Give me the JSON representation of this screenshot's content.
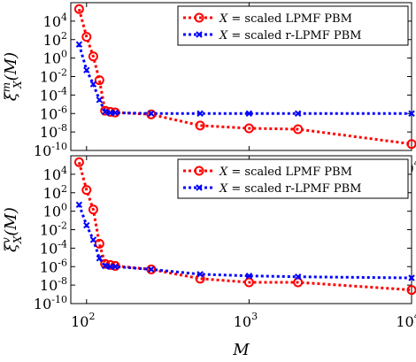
{
  "chart_data": [
    {
      "type": "line",
      "ylabel": "ξ_X^m(M)",
      "ylabel_main": "ξ",
      "ylabel_sup": "m",
      "ylabel_sub": "X",
      "ylabel_arg": "(M)",
      "xlabel": "",
      "x_scale": "log",
      "y_scale": "log",
      "xlim": [
        80,
        10000
      ],
      "ylim": [
        1e-10,
        1000000.0
      ],
      "x_tick_labels": [
        "10",
        "10",
        "10"
      ],
      "x_tick_exponents": [
        "2",
        "3",
        "4"
      ],
      "x_tick_values": [
        100,
        1000,
        10000
      ],
      "y_tick_labels": [
        "10",
        "10",
        "10",
        "10",
        "10",
        "10",
        "10",
        "10"
      ],
      "y_tick_exponents": [
        "-10",
        "-8",
        "-6",
        "-4",
        "-2",
        "0",
        "2",
        "4"
      ],
      "y_tick_values": [
        1e-10,
        1e-08,
        1e-06,
        0.0001,
        0.01,
        1,
        100,
        10000
      ],
      "legend_position": "top-right",
      "series": [
        {
          "name": "X = scaled LPMF PBM",
          "name_var": "X",
          "name_text": " = scaled LPMF PBM",
          "color": "#ff0000",
          "marker": "circle",
          "x": [
            90,
            100,
            110,
            120,
            130,
            140,
            150,
            250,
            500,
            1000,
            2000,
            10000
          ],
          "y": [
            200000.0,
            200.0,
            1.5,
            0.004,
            2e-06,
            1.5e-06,
            1.3e-06,
            8e-07,
            5e-08,
            2.5e-08,
            2e-08,
            5e-10
          ]
        },
        {
          "name": "X = scaled r-LPMF PBM",
          "name_var": "X",
          "name_text": " = scaled r-LPMF PBM",
          "color": "#0000ff",
          "marker": "x",
          "x": [
            90,
            100,
            110,
            120,
            130,
            140,
            150,
            250,
            500,
            1000,
            2000,
            10000
          ],
          "y": [
            30.0,
            0.05,
            0.0015,
            3e-05,
            1.5e-06,
            1.2e-06,
            1.2e-06,
            1e-06,
            1e-06,
            1e-06,
            1e-06,
            1e-06
          ]
        }
      ]
    },
    {
      "type": "line",
      "ylabel": "ξ_X^v(M)",
      "ylabel_main": "ξ",
      "ylabel_sup": "v",
      "ylabel_sub": "X",
      "ylabel_arg": "(M)",
      "xlabel": "M",
      "x_scale": "log",
      "y_scale": "log",
      "xlim": [
        80,
        10000
      ],
      "ylim": [
        1e-10,
        1000000.0
      ],
      "x_tick_labels": [
        "10",
        "10",
        "10"
      ],
      "x_tick_exponents": [
        "2",
        "3",
        "4"
      ],
      "x_tick_values": [
        100,
        1000,
        10000
      ],
      "y_tick_labels": [
        "10",
        "10",
        "10",
        "10",
        "10",
        "10",
        "10",
        "10"
      ],
      "y_tick_exponents": [
        "-10",
        "-8",
        "-6",
        "-4",
        "-2",
        "0",
        "2",
        "4"
      ],
      "y_tick_values": [
        1e-10,
        1e-08,
        1e-06,
        0.0001,
        0.01,
        1,
        100,
        10000
      ],
      "legend_position": "top-right",
      "series": [
        {
          "name": "X = scaled LPMF PBM",
          "name_var": "X",
          "name_text": " = scaled LPMF PBM",
          "color": "#ff0000",
          "marker": "circle",
          "x": [
            90,
            100,
            110,
            120,
            130,
            140,
            150,
            250,
            500,
            1000,
            2000,
            10000
          ],
          "y": [
            200000.0,
            200.0,
            1.5,
            0.0003,
            2e-06,
            1.5e-06,
            1.2e-06,
            5e-07,
            5e-08,
            2e-08,
            2e-08,
            3e-09
          ]
        },
        {
          "name": "X = scaled r-LPMF PBM",
          "name_var": "X",
          "name_text": " = scaled r-LPMF PBM",
          "color": "#0000ff",
          "marker": "x",
          "x": [
            90,
            100,
            110,
            120,
            130,
            140,
            150,
            250,
            500,
            1000,
            2000,
            10000
          ],
          "y": [
            5.0,
            0.03,
            0.0008,
            8e-06,
            1.2e-06,
            1e-06,
            1e-06,
            5e-07,
            1.5e-07,
            1e-07,
            8e-08,
            6e-08
          ]
        }
      ]
    }
  ]
}
